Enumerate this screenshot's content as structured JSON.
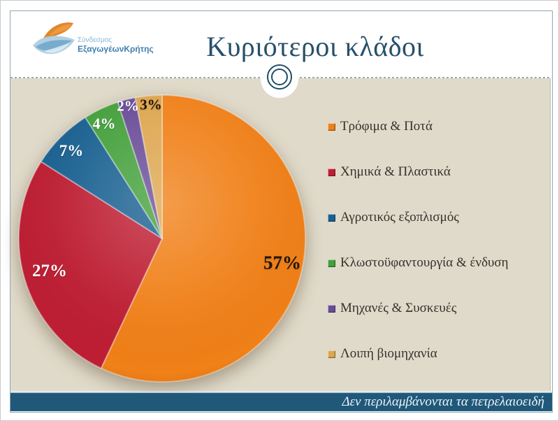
{
  "slide": {
    "title": "Κυριότεροι κλάδοι",
    "footer_note": "Δεν περιλαμβάνονται τα πετρελαιοειδή"
  },
  "logo": {
    "name_line1": "Σύνδεσμος",
    "name_line2": "ΕξαγωγέωνΚρήτης"
  },
  "chart_data": {
    "type": "pie",
    "title": "Κυριότεροι κλάδοι",
    "categories": [
      "Τρόφιμα & Ποτά",
      "Χημικά & Πλαστικά",
      "Αγροτικός εξοπλισμός",
      "Κλωστοϋφαντουργία & ένδυση",
      "Μηχανές & Συσκευές",
      "Λοιπή βιομηχανία"
    ],
    "values": [
      57,
      27,
      7,
      4,
      2,
      3
    ],
    "data_labels": [
      "57%",
      "27%",
      "7%",
      "4%",
      "2%",
      "3%"
    ],
    "colors": [
      "#F08018",
      "#BE1E33",
      "#1A6191",
      "#44A03C",
      "#6A4D97",
      "#DDA64F"
    ],
    "data_label_colors": [
      "#221507",
      "#FFFFFF",
      "#FFFFFF",
      "#FFFFFF",
      "#FFFFFF",
      "#221507"
    ],
    "start_angle_deg": 0,
    "direction": "clockwise",
    "legend_position": "right",
    "footnote": "Δεν περιλαμβάνονται τα πετρελαιοειδή"
  },
  "theme": {
    "content_bg": "#E0DACA",
    "footer_bg": "#20587A",
    "title_color": "#27506B",
    "frame_color": "#8FA8B2",
    "dash_color": "#97ABB5"
  }
}
